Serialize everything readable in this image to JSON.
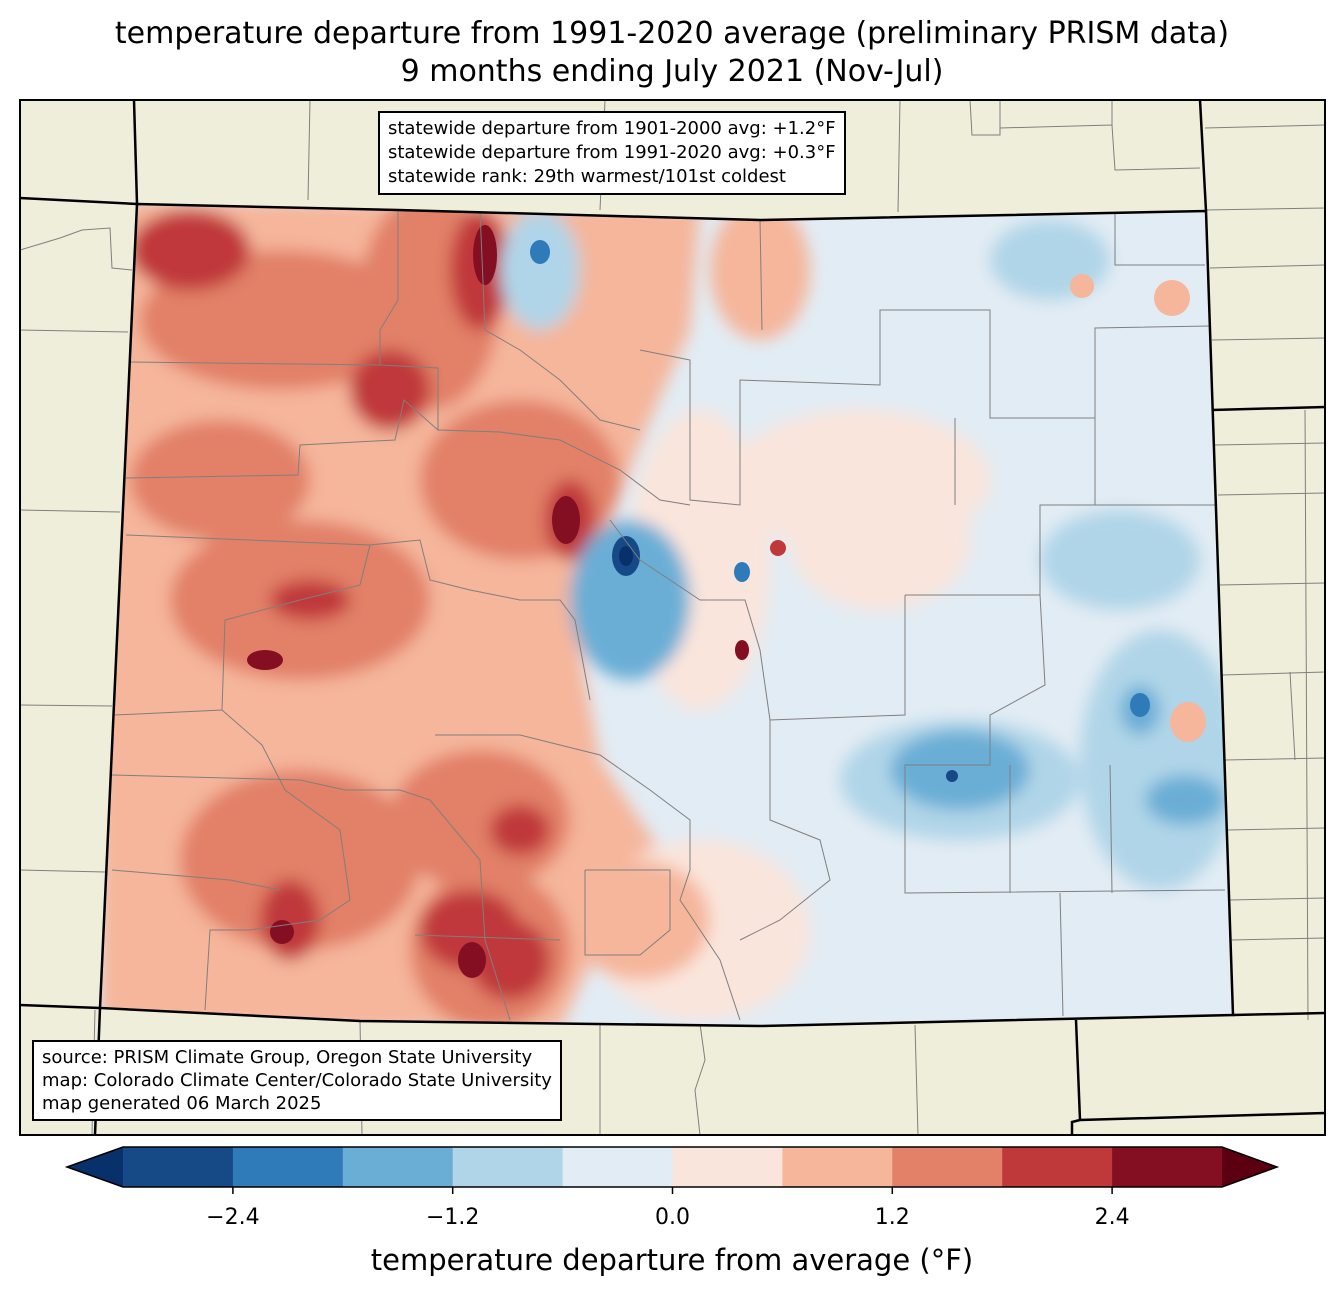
{
  "title": {
    "line1": "temperature departure from 1991-2020 average (preliminary PRISM data)",
    "line2": "9 months ending July 2021 (Nov-Jul)"
  },
  "stats": {
    "line1": "statewide departure from 1901-2000 avg: +1.2°F",
    "line2": "statewide departure from 1991-2020 avg: +0.3°F",
    "line3": "statewide rank: 29th warmest/101st coldest"
  },
  "credits": {
    "line1": "source: PRISM Climate Group, Oregon State University",
    "line2": "map: Colorado Climate Center/Colorado State University",
    "line3": "map generated 06 March 2025"
  },
  "colorbar": {
    "label": "temperature departure from average (°F)",
    "ticks": [
      "−2.4",
      "−1.2",
      "0.0",
      "1.2",
      "2.4"
    ],
    "boundaries": [
      -3.0,
      -2.4,
      -1.8,
      -1.2,
      -0.6,
      0.0,
      0.6,
      1.2,
      1.8,
      2.4,
      3.0
    ],
    "colors": [
      "#08306b",
      "#154a86",
      "#2f7bba",
      "#6aaed6",
      "#b0d5e8",
      "#e2ecf4",
      "#fae5dc",
      "#f5b69b",
      "#e28068",
      "#c0393a",
      "#850f22",
      "#5c0011"
    ]
  },
  "map_colors": {
    "land": "#efeedb",
    "county_lines": "#7f7f7f",
    "state_lines": "#000000"
  }
}
